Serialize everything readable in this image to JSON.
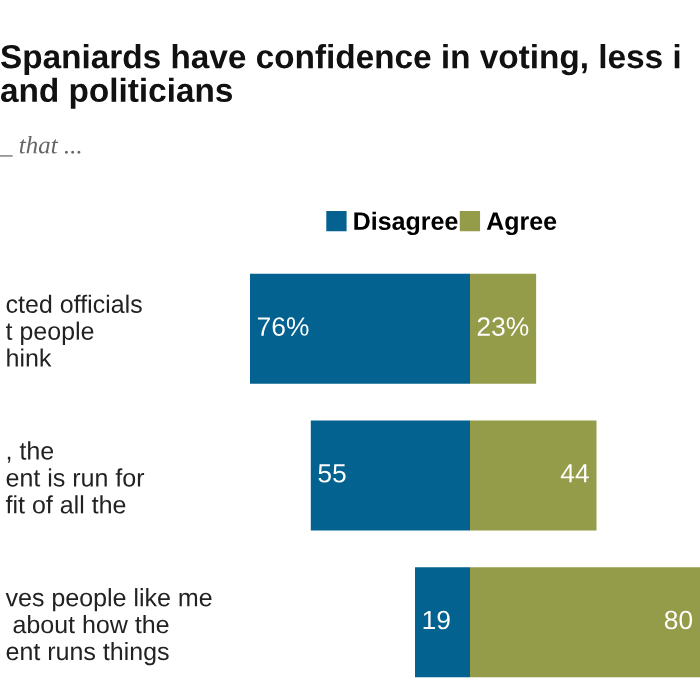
{
  "chart_data": [
    {
      "type": "bar",
      "orientation": "horizontal",
      "title": "Spaniards have confidence in voting, less i\nand politicians",
      "subtitle": "_ that ...",
      "categories": [
        "cted officials\nt people\nhink",
        ", the\nent is run for\nfit of all the",
        "ves people like me\n about how the\nent runs things"
      ],
      "series": [
        {
          "name": "Disagree",
          "color": "#03628f",
          "values": [
            76,
            55,
            19
          ],
          "value_labels": [
            "76%",
            "55",
            "19"
          ]
        }
      ],
      "xlim": [
        76,
        0
      ],
      "tick_labels": "y",
      "legend": "top",
      "grid": false
    },
    {
      "type": "bar",
      "orientation": "horizontal",
      "categories": [
        null,
        null,
        null
      ],
      "series": [
        {
          "name": "Agree",
          "color": "#959c49",
          "values": [
            23,
            44,
            80
          ],
          "value_labels": [
            "23%",
            "44",
            "80"
          ]
        }
      ],
      "xlim": [
        0,
        80
      ],
      "tick_labels": false,
      "legend": "top",
      "grid": false
    }
  ]
}
